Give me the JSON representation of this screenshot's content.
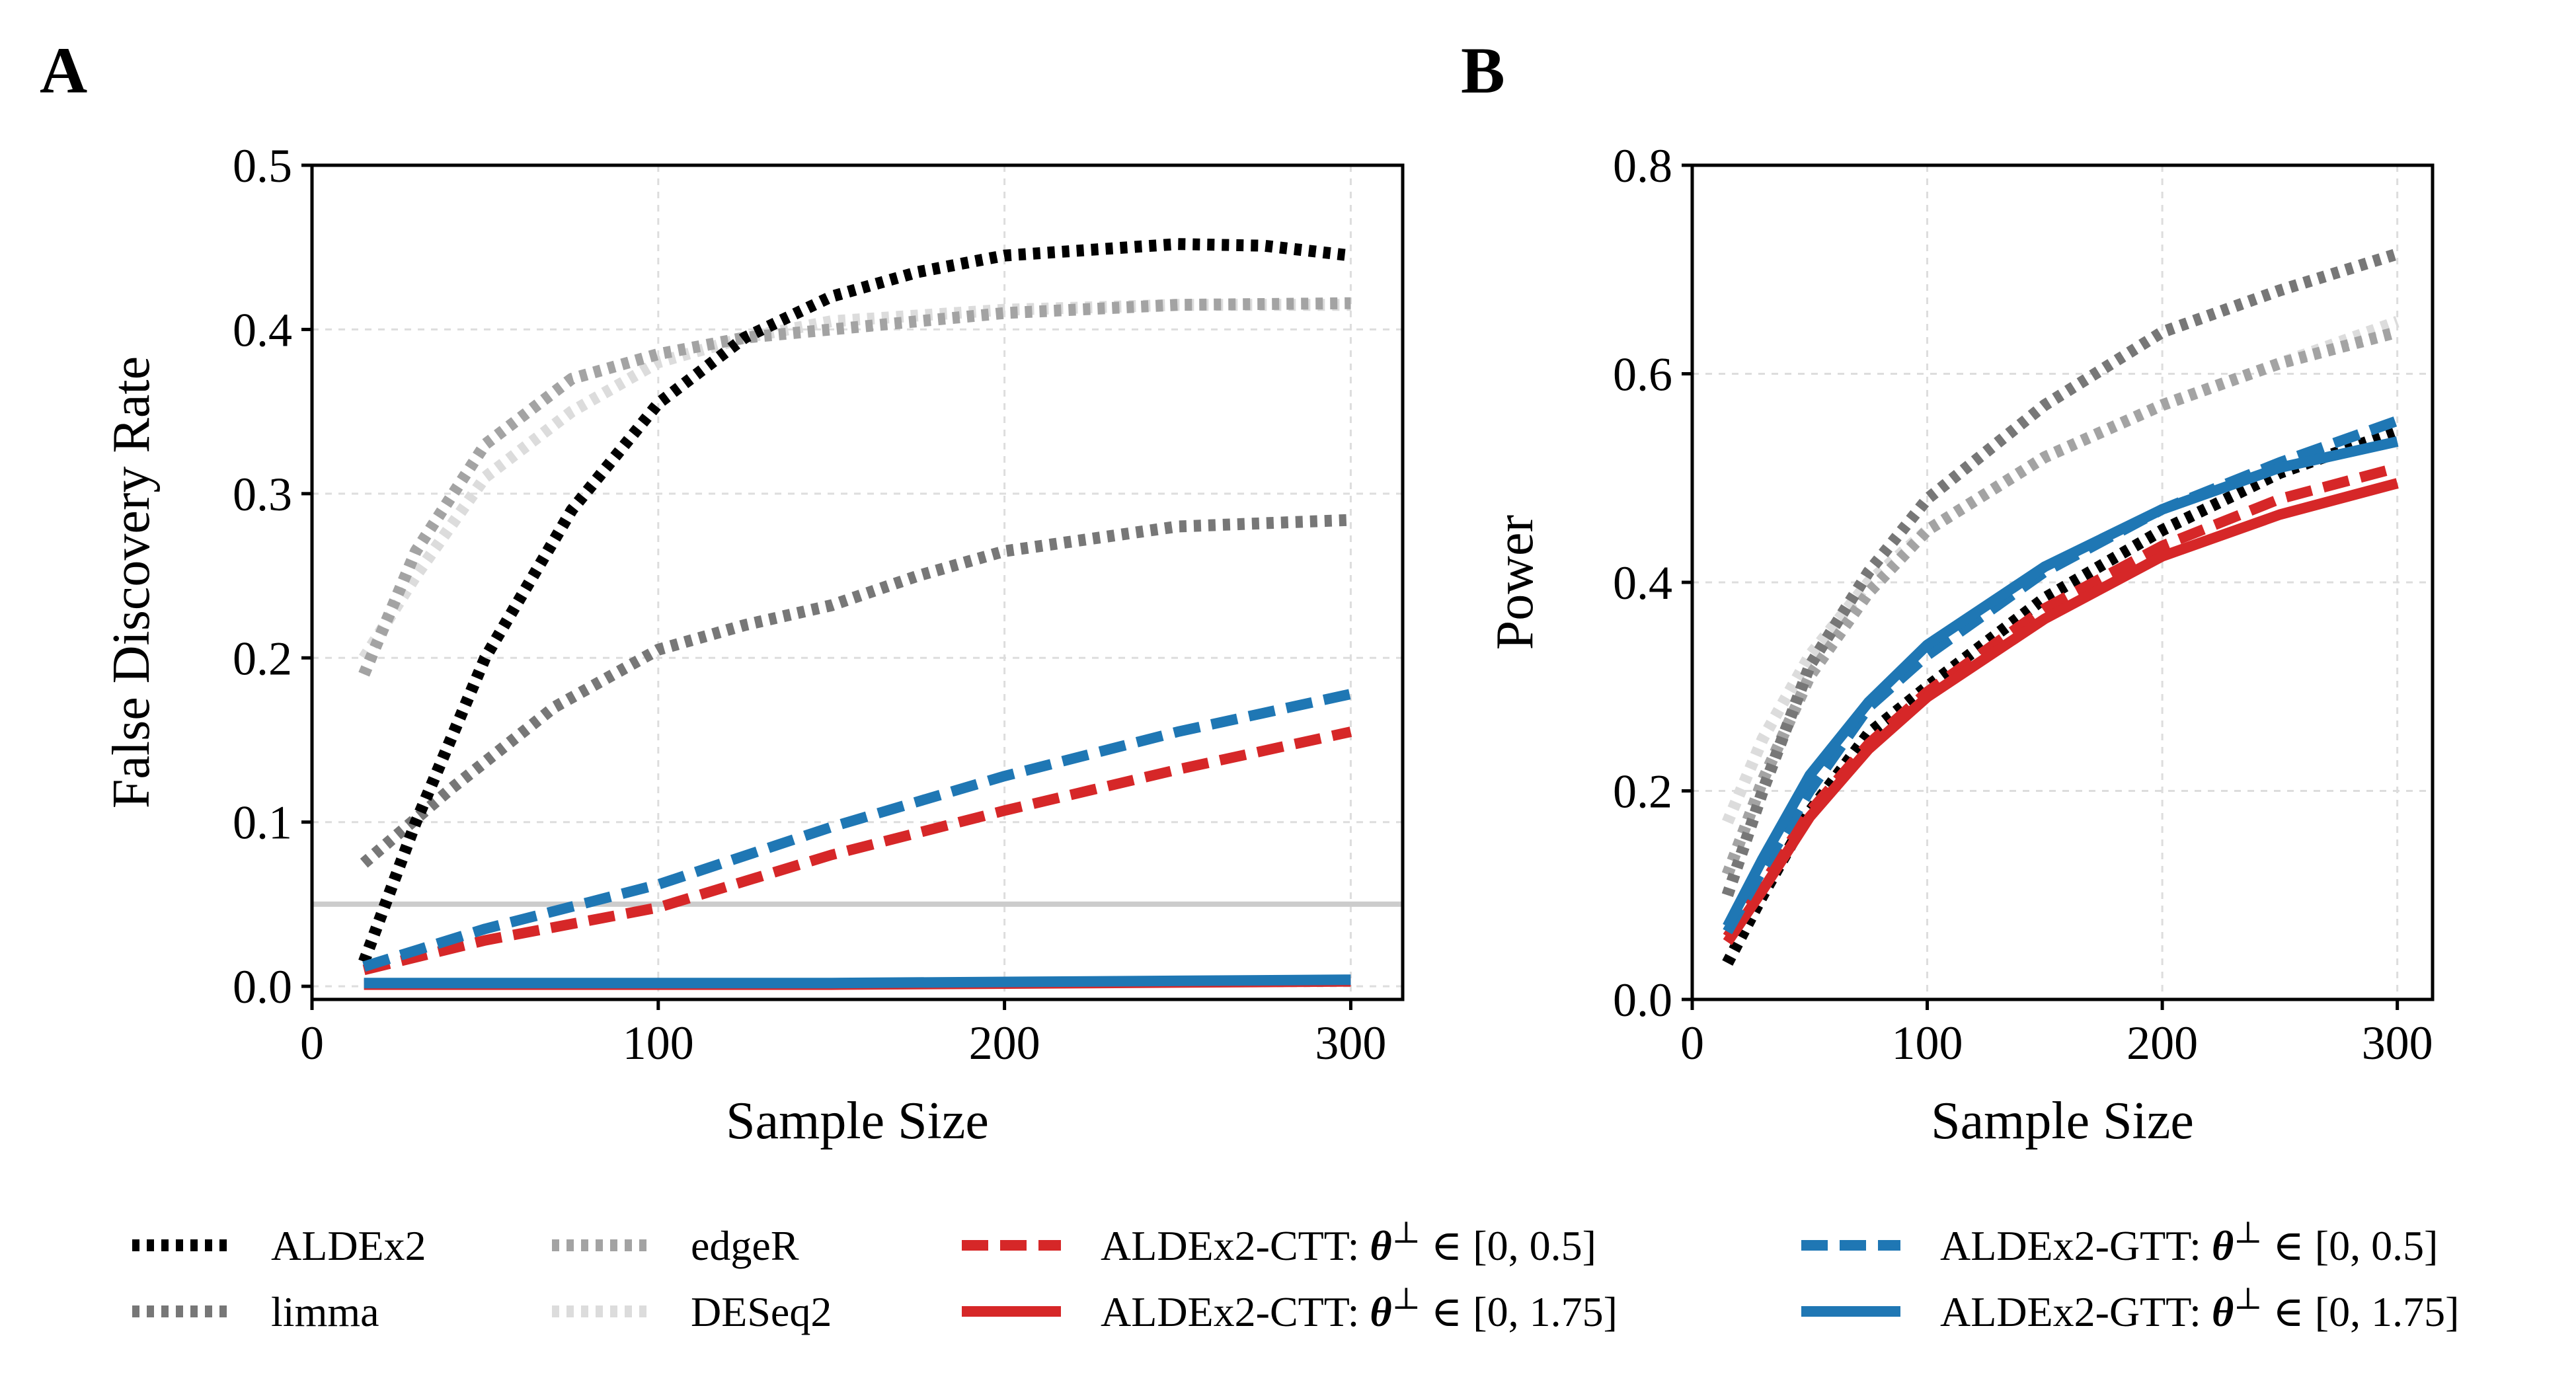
{
  "panels": {
    "A": {
      "letter": "A"
    },
    "B": {
      "letter": "B"
    }
  },
  "legend": {
    "items": [
      {
        "key": "aldex2",
        "label": "ALDEx2"
      },
      {
        "key": "limma",
        "label": "limma"
      },
      {
        "key": "edger",
        "label": "edgeR"
      },
      {
        "key": "deseq2",
        "label": "DESeq2"
      },
      {
        "key": "ctt_05",
        "label_prefix": "ALDEx2-CTT: ",
        "math": "θ",
        "sup": "⊥",
        "label_suffix": " ∈ [0, 0.5]"
      },
      {
        "key": "ctt_175",
        "label_prefix": "ALDEx2-CTT: ",
        "math": "θ",
        "sup": "⊥",
        "label_suffix": " ∈ [0, 1.75]"
      },
      {
        "key": "gtt_05",
        "label_prefix": "ALDEx2-GTT: ",
        "math": "θ",
        "sup": "⊥",
        "label_suffix": " ∈ [0, 0.5]"
      },
      {
        "key": "gtt_175",
        "label_prefix": "ALDEx2-GTT: ",
        "math": "θ",
        "sup": "⊥",
        "label_suffix": " ∈ [0, 1.75]"
      }
    ]
  },
  "styles": {
    "aldex2": {
      "color": "#000000",
      "dash": "dot",
      "dash_pattern": "11 11"
    },
    "limma": {
      "color": "#777777",
      "dash": "dot",
      "dash_pattern": "11 11"
    },
    "edger": {
      "color": "#a3a3a3",
      "dash": "dot",
      "dash_pattern": "11 11"
    },
    "deseq2": {
      "color": "#dcdcdc",
      "dash": "dot",
      "dash_pattern": "11 11"
    },
    "ctt_05": {
      "color": "#d62728",
      "dash": "dashed",
      "dash_pattern": "40 18"
    },
    "ctt_175": {
      "color": "#d62728",
      "dash": "solid",
      "dash_pattern": ""
    },
    "gtt_05": {
      "color": "#1f77b4",
      "dash": "dashed",
      "dash_pattern": "40 18"
    },
    "gtt_175": {
      "color": "#1f77b4",
      "dash": "solid",
      "dash_pattern": ""
    },
    "reference_line_color": "#cccccc",
    "grid_color": "#dddddd"
  },
  "chart_data": [
    {
      "panel": "A",
      "type": "line",
      "title": "",
      "xlabel": "Sample Size",
      "ylabel": "False Discovery Rate",
      "xlim": [
        0,
        315
      ],
      "ylim": [
        -0.008,
        0.5
      ],
      "xticks": [
        0,
        100,
        200,
        300
      ],
      "xtick_labels": [
        "0",
        "100",
        "200",
        "300"
      ],
      "yticks": [
        0.0,
        0.1,
        0.2,
        0.3,
        0.4,
        0.5
      ],
      "ytick_labels": [
        "0.0",
        "0.1",
        "0.2",
        "0.3",
        "0.4",
        "0.5"
      ],
      "grid": true,
      "hline": 0.05,
      "series": [
        {
          "key": "deseq2",
          "x": [
            15,
            30,
            50,
            75,
            100,
            125,
            150,
            200,
            250,
            300
          ],
          "y": [
            0.2,
            0.25,
            0.31,
            0.35,
            0.38,
            0.395,
            0.405,
            0.412,
            0.415,
            0.415
          ]
        },
        {
          "key": "edger",
          "x": [
            15,
            30,
            50,
            75,
            100,
            125,
            150,
            200,
            250,
            300
          ],
          "y": [
            0.19,
            0.265,
            0.33,
            0.37,
            0.385,
            0.395,
            0.4,
            0.41,
            0.415,
            0.416
          ]
        },
        {
          "key": "limma",
          "x": [
            15,
            40,
            70,
            100,
            125,
            150,
            175,
            200,
            250,
            300
          ],
          "y": [
            0.075,
            0.12,
            0.17,
            0.205,
            0.22,
            0.232,
            0.25,
            0.265,
            0.28,
            0.284
          ]
        },
        {
          "key": "aldex2",
          "x": [
            15,
            30,
            50,
            75,
            100,
            125,
            150,
            175,
            200,
            250,
            275,
            300
          ],
          "y": [
            0.015,
            0.1,
            0.2,
            0.29,
            0.355,
            0.395,
            0.42,
            0.435,
            0.445,
            0.452,
            0.451,
            0.445
          ]
        },
        {
          "key": "ctt_05",
          "x": [
            15,
            50,
            100,
            150,
            200,
            250,
            300
          ],
          "y": [
            0.01,
            0.028,
            0.048,
            0.08,
            0.107,
            0.132,
            0.155
          ]
        },
        {
          "key": "gtt_05",
          "x": [
            15,
            50,
            100,
            150,
            200,
            250,
            300
          ],
          "y": [
            0.012,
            0.035,
            0.062,
            0.097,
            0.128,
            0.155,
            0.178
          ]
        },
        {
          "key": "ctt_175",
          "x": [
            15,
            75,
            150,
            225,
            300
          ],
          "y": [
            0.001,
            0.001,
            0.001,
            0.002,
            0.003
          ]
        },
        {
          "key": "gtt_175",
          "x": [
            15,
            75,
            150,
            225,
            300
          ],
          "y": [
            0.002,
            0.002,
            0.002,
            0.003,
            0.004
          ]
        }
      ]
    },
    {
      "panel": "B",
      "type": "line",
      "title": "",
      "xlabel": "Sample Size",
      "ylabel": "Power",
      "xlim": [
        0,
        315
      ],
      "ylim": [
        0.0,
        0.8
      ],
      "xticks": [
        0,
        100,
        200,
        300
      ],
      "xtick_labels": [
        "0",
        "100",
        "200",
        "300"
      ],
      "yticks": [
        0.0,
        0.2,
        0.4,
        0.6,
        0.8
      ],
      "ytick_labels": [
        "0.0",
        "0.2",
        "0.4",
        "0.6",
        "0.8"
      ],
      "grid": true,
      "series": [
        {
          "key": "deseq2",
          "x": [
            15,
            30,
            50,
            75,
            100,
            150,
            200,
            250,
            300
          ],
          "y": [
            0.17,
            0.25,
            0.33,
            0.4,
            0.45,
            0.52,
            0.57,
            0.61,
            0.65
          ]
        },
        {
          "key": "edger",
          "x": [
            15,
            30,
            50,
            75,
            100,
            150,
            200,
            250,
            300
          ],
          "y": [
            0.12,
            0.21,
            0.31,
            0.39,
            0.45,
            0.52,
            0.57,
            0.61,
            0.64
          ]
        },
        {
          "key": "limma",
          "x": [
            15,
            30,
            50,
            75,
            100,
            150,
            200,
            250,
            300
          ],
          "y": [
            0.1,
            0.2,
            0.32,
            0.41,
            0.48,
            0.57,
            0.64,
            0.68,
            0.715
          ]
        },
        {
          "key": "aldex2",
          "x": [
            15,
            30,
            50,
            75,
            100,
            150,
            200,
            250,
            300
          ],
          "y": [
            0.035,
            0.1,
            0.18,
            0.255,
            0.3,
            0.385,
            0.45,
            0.505,
            0.545
          ]
        },
        {
          "key": "ctt_05",
          "x": [
            15,
            30,
            50,
            75,
            100,
            150,
            200,
            250,
            300
          ],
          "y": [
            0.06,
            0.11,
            0.18,
            0.245,
            0.295,
            0.375,
            0.435,
            0.48,
            0.51
          ]
        },
        {
          "key": "ctt_175",
          "x": [
            15,
            30,
            50,
            75,
            100,
            150,
            200,
            250,
            300
          ],
          "y": [
            0.055,
            0.105,
            0.175,
            0.24,
            0.29,
            0.365,
            0.425,
            0.465,
            0.495
          ]
        },
        {
          "key": "gtt_05",
          "x": [
            15,
            30,
            50,
            75,
            100,
            150,
            200,
            250,
            300
          ],
          "y": [
            0.065,
            0.125,
            0.2,
            0.28,
            0.33,
            0.41,
            0.47,
            0.515,
            0.555
          ]
        },
        {
          "key": "gtt_175",
          "x": [
            15,
            30,
            50,
            75,
            100,
            150,
            200,
            250,
            300
          ],
          "y": [
            0.07,
            0.135,
            0.215,
            0.285,
            0.34,
            0.415,
            0.47,
            0.51,
            0.535
          ]
        }
      ]
    }
  ]
}
